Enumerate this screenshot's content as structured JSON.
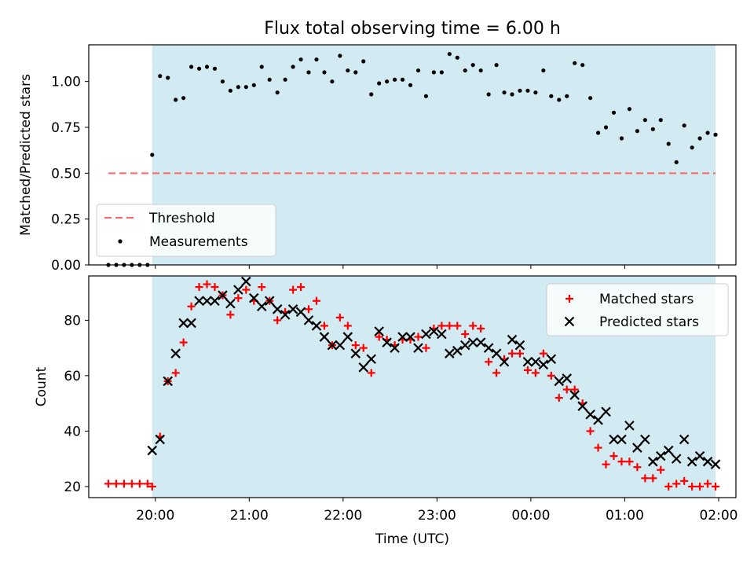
{
  "title": "Flux total observing time = 6.00 h",
  "colors": {
    "shade": "#add8e6",
    "threshold": "#ff6666",
    "measurement": "#000000",
    "matched": "#ff0000",
    "predicted": "#000000"
  },
  "chart_data": [
    {
      "type": "scatter",
      "name": "ratio-panel",
      "ylabel": "Matched/Predicted stars",
      "ylim": [
        0,
        1.2
      ],
      "yticks": [
        0.0,
        0.25,
        0.5,
        0.75,
        1.0
      ],
      "ytick_labels": [
        "0.00",
        "0.25",
        "0.50",
        "0.75",
        "1.00"
      ],
      "shaded_span": [
        "19:58",
        "01:58"
      ],
      "threshold": {
        "value": 0.5,
        "x_range": [
          "19:30",
          "01:58"
        ]
      },
      "legend": {
        "position": "lower-left",
        "entries": [
          "Threshold",
          "Measurements"
        ]
      },
      "series": [
        {
          "name": "Measurements",
          "marker": "dot",
          "x": [
            "19:30",
            "19:35",
            "19:40",
            "19:45",
            "19:50",
            "19:55",
            "19:58",
            "20:03",
            "20:08",
            "20:13",
            "20:18",
            "20:23",
            "20:28",
            "20:33",
            "20:38",
            "20:43",
            "20:48",
            "20:53",
            "20:58",
            "21:03",
            "21:08",
            "21:13",
            "21:18",
            "21:23",
            "21:28",
            "21:33",
            "21:38",
            "21:43",
            "21:48",
            "21:53",
            "21:58",
            "22:03",
            "22:08",
            "22:13",
            "22:18",
            "22:23",
            "22:28",
            "22:33",
            "22:38",
            "22:43",
            "22:48",
            "22:53",
            "22:58",
            "23:03",
            "23:08",
            "23:13",
            "23:18",
            "23:23",
            "23:28",
            "23:33",
            "23:38",
            "23:43",
            "23:48",
            "23:53",
            "23:58",
            "00:03",
            "00:08",
            "00:13",
            "00:18",
            "00:23",
            "00:28",
            "00:33",
            "00:38",
            "00:43",
            "00:48",
            "00:53",
            "00:58",
            "01:03",
            "01:08",
            "01:13",
            "01:18",
            "01:23",
            "01:28",
            "01:33",
            "01:38",
            "01:43",
            "01:48",
            "01:53",
            "01:58"
          ],
          "y": [
            0,
            0,
            0,
            0,
            0,
            0,
            0.6,
            1.03,
            1.02,
            0.9,
            0.91,
            1.08,
            1.07,
            1.08,
            1.07,
            1.0,
            0.95,
            0.97,
            0.97,
            0.98,
            1.08,
            1.01,
            0.94,
            1.01,
            1.08,
            1.12,
            1.05,
            1.12,
            1.05,
            1.0,
            1.14,
            1.06,
            1.05,
            1.11,
            0.93,
            0.99,
            1.0,
            1.01,
            1.01,
            0.98,
            1.06,
            0.92,
            1.05,
            1.05,
            1.15,
            1.13,
            1.06,
            1.09,
            1.06,
            0.93,
            1.09,
            0.94,
            0.93,
            0.95,
            0.95,
            0.94,
            1.06,
            0.92,
            0.9,
            0.92,
            1.1,
            1.09,
            0.91,
            0.72,
            0.75,
            0.83,
            0.69,
            0.85,
            0.73,
            0.79,
            0.74,
            0.79,
            0.66,
            0.56,
            0.76,
            0.64,
            0.69,
            0.72,
            0.71
          ]
        }
      ]
    },
    {
      "type": "scatter",
      "name": "count-panel",
      "xlabel": "Time (UTC)",
      "ylabel": "Count",
      "ylim": [
        16,
        96
      ],
      "yticks": [
        20,
        40,
        60,
        80
      ],
      "xticks": [
        "20:00",
        "21:00",
        "22:00",
        "23:00",
        "00:00",
        "01:00",
        "02:00"
      ],
      "shaded_span": [
        "19:58",
        "01:58"
      ],
      "legend": {
        "position": "top-right",
        "entries": [
          "Matched stars",
          "Predicted stars"
        ]
      },
      "series": [
        {
          "name": "Matched stars",
          "marker": "plus",
          "x": [
            "19:30",
            "19:35",
            "19:40",
            "19:45",
            "19:50",
            "19:55",
            "19:58",
            "20:03",
            "20:08",
            "20:13",
            "20:18",
            "20:23",
            "20:28",
            "20:33",
            "20:38",
            "20:43",
            "20:48",
            "20:53",
            "20:58",
            "21:03",
            "21:08",
            "21:13",
            "21:18",
            "21:23",
            "21:28",
            "21:33",
            "21:38",
            "21:43",
            "21:48",
            "21:53",
            "21:58",
            "22:03",
            "22:08",
            "22:13",
            "22:18",
            "22:23",
            "22:28",
            "22:33",
            "22:38",
            "22:43",
            "22:48",
            "22:53",
            "22:58",
            "23:03",
            "23:08",
            "23:13",
            "23:18",
            "23:23",
            "23:28",
            "23:33",
            "23:38",
            "23:43",
            "23:48",
            "23:53",
            "23:58",
            "00:03",
            "00:08",
            "00:13",
            "00:18",
            "00:23",
            "00:28",
            "00:33",
            "00:38",
            "00:43",
            "00:48",
            "00:53",
            "00:58",
            "01:03",
            "01:08",
            "01:13",
            "01:18",
            "01:23",
            "01:28",
            "01:33",
            "01:38",
            "01:43",
            "01:48",
            "01:53",
            "01:58"
          ],
          "y": [
            21,
            21,
            21,
            21,
            21,
            21,
            20,
            38,
            58,
            61,
            72,
            85,
            92,
            93,
            92,
            89,
            82,
            88,
            91,
            87,
            92,
            87,
            80,
            83,
            91,
            92,
            84,
            87,
            78,
            71,
            81,
            78,
            71,
            70,
            61,
            74,
            73,
            71,
            73,
            73,
            74,
            70,
            77,
            78,
            78,
            78,
            75,
            78,
            77,
            65,
            61,
            66,
            68,
            68,
            62,
            61,
            68,
            60,
            52,
            55,
            55,
            50,
            40,
            34,
            28,
            31,
            29,
            29,
            27,
            23,
            23,
            26,
            20,
            21,
            22,
            20,
            20,
            21,
            20
          ]
        },
        {
          "name": "Predicted stars",
          "marker": "x",
          "x": [
            "19:58",
            "20:03",
            "20:08",
            "20:13",
            "20:18",
            "20:23",
            "20:28",
            "20:33",
            "20:38",
            "20:43",
            "20:48",
            "20:53",
            "20:58",
            "21:03",
            "21:08",
            "21:13",
            "21:18",
            "21:23",
            "21:28",
            "21:33",
            "21:38",
            "21:43",
            "21:48",
            "21:53",
            "21:58",
            "22:03",
            "22:08",
            "22:13",
            "22:18",
            "22:23",
            "22:28",
            "22:33",
            "22:38",
            "22:43",
            "22:48",
            "22:53",
            "22:58",
            "23:03",
            "23:08",
            "23:13",
            "23:18",
            "23:23",
            "23:28",
            "23:33",
            "23:38",
            "23:43",
            "23:48",
            "23:53",
            "23:58",
            "00:03",
            "00:08",
            "00:13",
            "00:18",
            "00:23",
            "00:28",
            "00:33",
            "00:38",
            "00:43",
            "00:48",
            "00:53",
            "00:58",
            "01:03",
            "01:08",
            "01:13",
            "01:18",
            "01:23",
            "01:28",
            "01:33",
            "01:38",
            "01:43",
            "01:48",
            "01:53",
            "01:58"
          ],
          "y": [
            33,
            37,
            58,
            68,
            79,
            79,
            87,
            87,
            87,
            89,
            86,
            91,
            94,
            88,
            85,
            87,
            84,
            82,
            84,
            83,
            80,
            78,
            74,
            71,
            71,
            74,
            68,
            63,
            66,
            76,
            72,
            70,
            74,
            74,
            70,
            75,
            76,
            75,
            68,
            69,
            71,
            72,
            72,
            70,
            68,
            65,
            73,
            71,
            65,
            65,
            64,
            66,
            58,
            59,
            53,
            49,
            46,
            44,
            47,
            37,
            37,
            42,
            34,
            37,
            29,
            31,
            33,
            30,
            37,
            29,
            31,
            29,
            28
          ]
        }
      ]
    }
  ]
}
